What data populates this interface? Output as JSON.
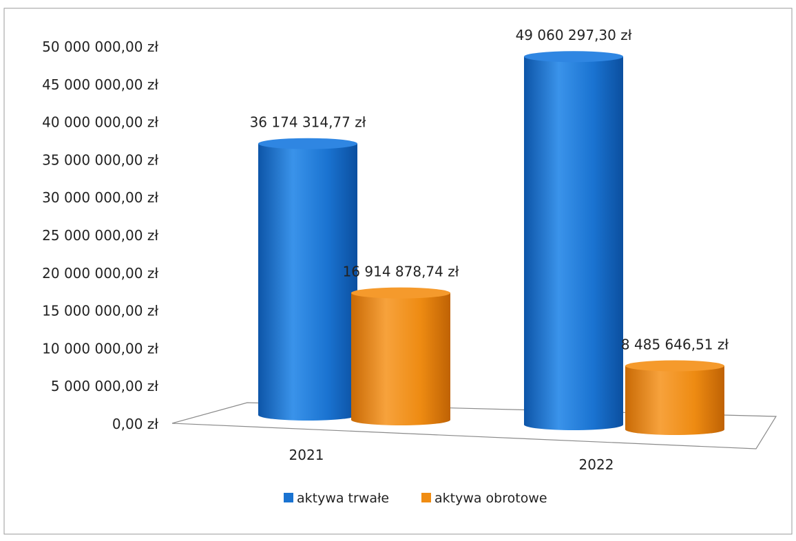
{
  "chart_data": {
    "type": "bar",
    "style": "3d-cylinder",
    "categories": [
      "2021",
      "2022"
    ],
    "series": [
      {
        "name": "aktywa trwałe",
        "values": [
          36174314.77,
          49060297.3
        ],
        "labels": [
          "36 174 314,77 zł",
          "49 060 297,30 zł"
        ],
        "color": "#1a73d1"
      },
      {
        "name": "aktywa obrotowe",
        "values": [
          16914878.74,
          8485646.51
        ],
        "labels": [
          "16 914 878,74 zł",
          "8 485 646,51 zł"
        ],
        "color": "#f08c12"
      }
    ],
    "yticks": [
      "0,00 zł",
      "5 000 000,00 zł",
      "10 000 000,00 zł",
      "15 000 000,00 zł",
      "20 000 000,00 zł",
      "25 000 000,00 zł",
      "30 000 000,00 zł",
      "35 000 000,00 zł",
      "40 000 000,00 zł",
      "45 000 000,00 zł",
      "50 000 000,00 zł"
    ],
    "ylim": [
      0,
      50000000
    ],
    "grid": false,
    "legend_position": "bottom"
  }
}
